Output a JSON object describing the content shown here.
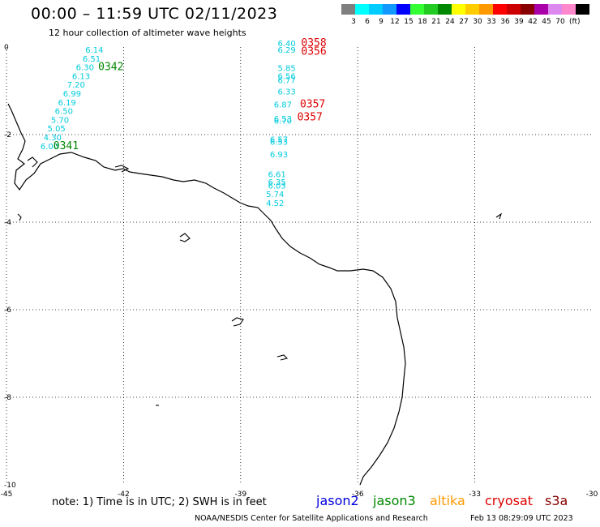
{
  "header": {
    "title": "00:00 – 11:59 UTC 02/11/2023",
    "subtitle": "12 hour collection of altimeter wave heights"
  },
  "legend": {
    "unit": "(ft)",
    "items": [
      {
        "color": "#7f7f7f",
        "label": ""
      },
      {
        "color": "#00ffff",
        "label": "3"
      },
      {
        "color": "#00ccff",
        "label": "6"
      },
      {
        "color": "#1199ff",
        "label": "9"
      },
      {
        "color": "#0000ff",
        "label": "12"
      },
      {
        "color": "#33ff33",
        "label": "15"
      },
      {
        "color": "#22cc22",
        "label": "18"
      },
      {
        "color": "#008800",
        "label": "21"
      },
      {
        "color": "#ffff00",
        "label": "24"
      },
      {
        "color": "#ffcc00",
        "label": "27"
      },
      {
        "color": "#ff9900",
        "label": "30"
      },
      {
        "color": "#ff0000",
        "label": "33"
      },
      {
        "color": "#cc0000",
        "label": "36"
      },
      {
        "color": "#880000",
        "label": "39"
      },
      {
        "color": "#aa00aa",
        "label": "42"
      },
      {
        "color": "#dd88ee",
        "label": "45"
      },
      {
        "color": "#ff88cc",
        "label": "70"
      },
      {
        "color": "#000000",
        "label": ""
      }
    ]
  },
  "axes": {
    "lon_labels": [
      "-45",
      "-42",
      "-39",
      "-36",
      "-33",
      "-30"
    ],
    "lat_labels": [
      "0",
      "-2",
      "-4",
      "-6",
      "-8",
      "-10"
    ],
    "lon_range": [
      -45,
      -30
    ],
    "lat_range": [
      -10,
      0
    ]
  },
  "wave_heights": {
    "color_cyan": "#00ccdd",
    "track_a": [
      {
        "value": "6.14",
        "lon": -42.98,
        "lat": -0.13
      },
      {
        "value": "6.51",
        "lon": -43.05,
        "lat": -0.33
      },
      {
        "value": "6.30",
        "lon": -43.22,
        "lat": -0.53
      },
      {
        "value": "6.13",
        "lon": -43.32,
        "lat": -0.73
      },
      {
        "value": "7.20",
        "lon": -43.45,
        "lat": -0.93
      },
      {
        "value": "6.99",
        "lon": -43.55,
        "lat": -1.13
      },
      {
        "value": "6.19",
        "lon": -43.68,
        "lat": -1.33
      },
      {
        "value": "6.50",
        "lon": -43.76,
        "lat": -1.53
      },
      {
        "value": "5.70",
        "lon": -43.86,
        "lat": -1.73
      },
      {
        "value": "5.05",
        "lon": -43.95,
        "lat": -1.93
      },
      {
        "value": "4.30",
        "lon": -44.05,
        "lat": -2.13
      },
      {
        "value": "6.00",
        "lon": -44.13,
        "lat": -2.33
      }
    ],
    "track_b": [
      {
        "value": "6.40",
        "lon": -38.05,
        "lat": 0.02
      },
      {
        "value": "6.29",
        "lon": -38.05,
        "lat": -0.13
      },
      {
        "value": "5.85",
        "lon": -38.05,
        "lat": -0.55
      },
      {
        "value": "6.56",
        "lon": -38.05,
        "lat": -0.73
      },
      {
        "value": "6.77",
        "lon": -38.05,
        "lat": -0.82
      },
      {
        "value": "6.33",
        "lon": -38.05,
        "lat": -1.08
      },
      {
        "value": "6.87",
        "lon": -38.15,
        "lat": -1.38
      },
      {
        "value": "6.53",
        "lon": -38.15,
        "lat": -1.7
      },
      {
        "value": "6.70",
        "lon": -38.15,
        "lat": -1.75
      },
      {
        "value": "6.57",
        "lon": -38.25,
        "lat": -2.18
      },
      {
        "value": "6.53",
        "lon": -38.25,
        "lat": -2.23
      },
      {
        "value": "6.93",
        "lon": -38.25,
        "lat": -2.52
      },
      {
        "value": "6.61",
        "lon": -38.3,
        "lat": -2.97
      },
      {
        "value": "6.35",
        "lon": -38.3,
        "lat": -3.15
      },
      {
        "value": "6.03",
        "lon": -38.3,
        "lat": -3.23
      },
      {
        "value": "5.74",
        "lon": -38.35,
        "lat": -3.43
      },
      {
        "value": "4.52",
        "lon": -38.35,
        "lat": -3.63
      }
    ]
  },
  "time_labels": [
    {
      "text": "0342",
      "lon": -42.65,
      "lat": -0.53,
      "color": "#008800"
    },
    {
      "text": "0341",
      "lon": -43.8,
      "lat": -2.33,
      "color": "#008800"
    },
    {
      "text": "0358",
      "lon": -37.45,
      "lat": 0.02,
      "color": "#dd0000"
    },
    {
      "text": "0356",
      "lon": -37.45,
      "lat": -0.18,
      "color": "#dd0000"
    },
    {
      "text": "0357",
      "lon": -37.48,
      "lat": -1.38,
      "color": "#dd0000"
    },
    {
      "text": "0357",
      "lon": -37.55,
      "lat": -1.68,
      "color": "#dd0000"
    }
  ],
  "footer": {
    "note": "note:  1) Time is in UTC;  2) SWH is in feet",
    "satellites": [
      {
        "name": "jason2",
        "color": "#0000dd"
      },
      {
        "name": "jason3",
        "color": "#008800"
      },
      {
        "name": "altika",
        "color": "#ff9900"
      },
      {
        "name": "cryosat",
        "color": "#dd0000"
      },
      {
        "name": "s3a",
        "color": "#880000"
      }
    ],
    "credit": "NOAA/NESDIS Center for Satellite Applications and Research",
    "timestamp": "Feb 13 08:29:09 UTC 2023"
  }
}
